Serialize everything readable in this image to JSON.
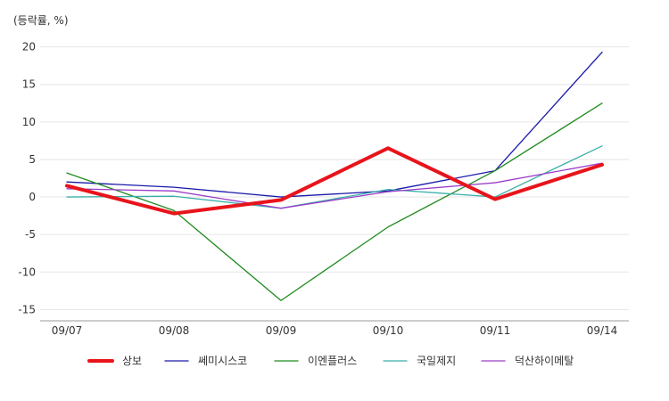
{
  "chart_data": {
    "type": "line",
    "ylabel": "(등락률, %)",
    "categories": [
      "09/07",
      "09/08",
      "09/09",
      "09/10",
      "09/11",
      "09/14"
    ],
    "y_ticks": [
      20,
      15,
      10,
      5,
      0,
      -5,
      -10,
      -15
    ],
    "ylim": [
      -16.5,
      21.5
    ],
    "grid": true,
    "legend_position": "bottom",
    "series": [
      {
        "name": "상보",
        "color": "#e8141b",
        "emphasis": true,
        "values": [
          1.5,
          -2.2,
          -0.4,
          6.5,
          -0.3,
          4.3
        ]
      },
      {
        "name": "쎄미시스코",
        "color": "#1a1aaa",
        "values": [
          2.0,
          1.3,
          0.0,
          0.8,
          3.5,
          19.3
        ]
      },
      {
        "name": "이엔플러스",
        "color": "#1e8a1e",
        "values": [
          3.2,
          -1.8,
          -13.8,
          -4.0,
          3.5,
          12.5
        ]
      },
      {
        "name": "국일제지",
        "color": "#3aafa9",
        "values": [
          0.0,
          0.1,
          -1.5,
          1.0,
          0.0,
          6.8
        ]
      },
      {
        "name": "덕산하이메탈",
        "color": "#9b3dc8",
        "values": [
          1.1,
          0.8,
          -1.5,
          0.7,
          1.9,
          4.5
        ]
      }
    ]
  }
}
